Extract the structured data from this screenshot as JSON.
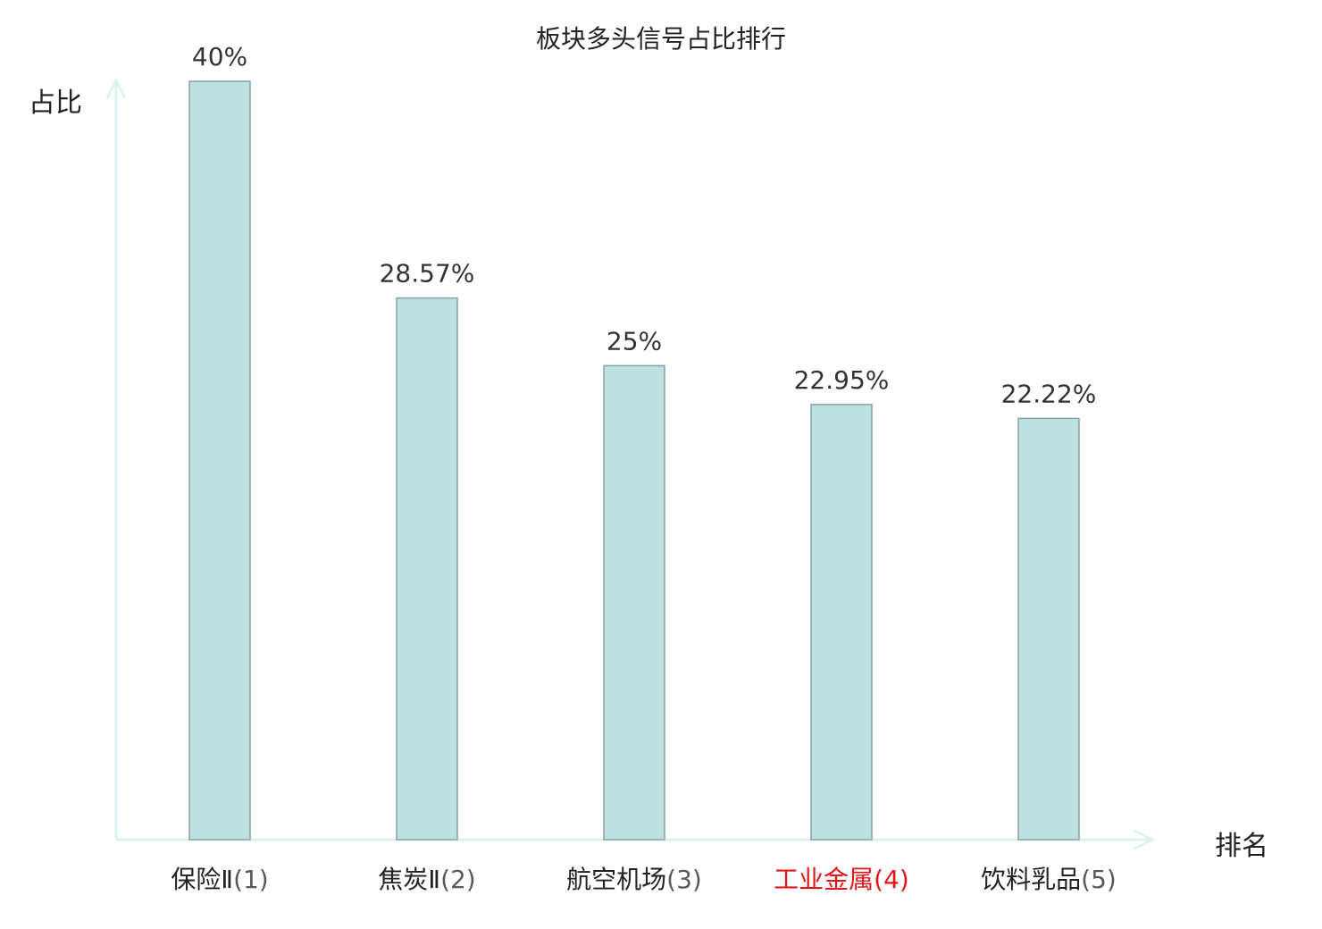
{
  "chart_data": {
    "type": "bar",
    "title": "板块多头信号占比排行",
    "ylabel": "占比",
    "xlabel": "排名",
    "categories": [
      "保险Ⅱ",
      "焦炭Ⅱ",
      "航空机场",
      "工业金属",
      "饮料乳品"
    ],
    "rank_labels": [
      "(1)",
      "(2)",
      "(3)",
      "(4)",
      "(5)"
    ],
    "values": [
      40,
      28.57,
      25,
      22.95,
      22.22
    ],
    "value_labels": [
      "40%",
      "28.57%",
      "25%",
      "22.95%",
      "22.22%"
    ],
    "highlight_index": 3,
    "ylim": [
      0,
      40
    ],
    "grid": false,
    "colors": {
      "bar_fill": "#bde0e1",
      "bar_stroke": "#86a4a5",
      "axis": "#dff2f1",
      "text": "#222222",
      "value_text": "#333333",
      "highlight": "#e0161b"
    }
  }
}
